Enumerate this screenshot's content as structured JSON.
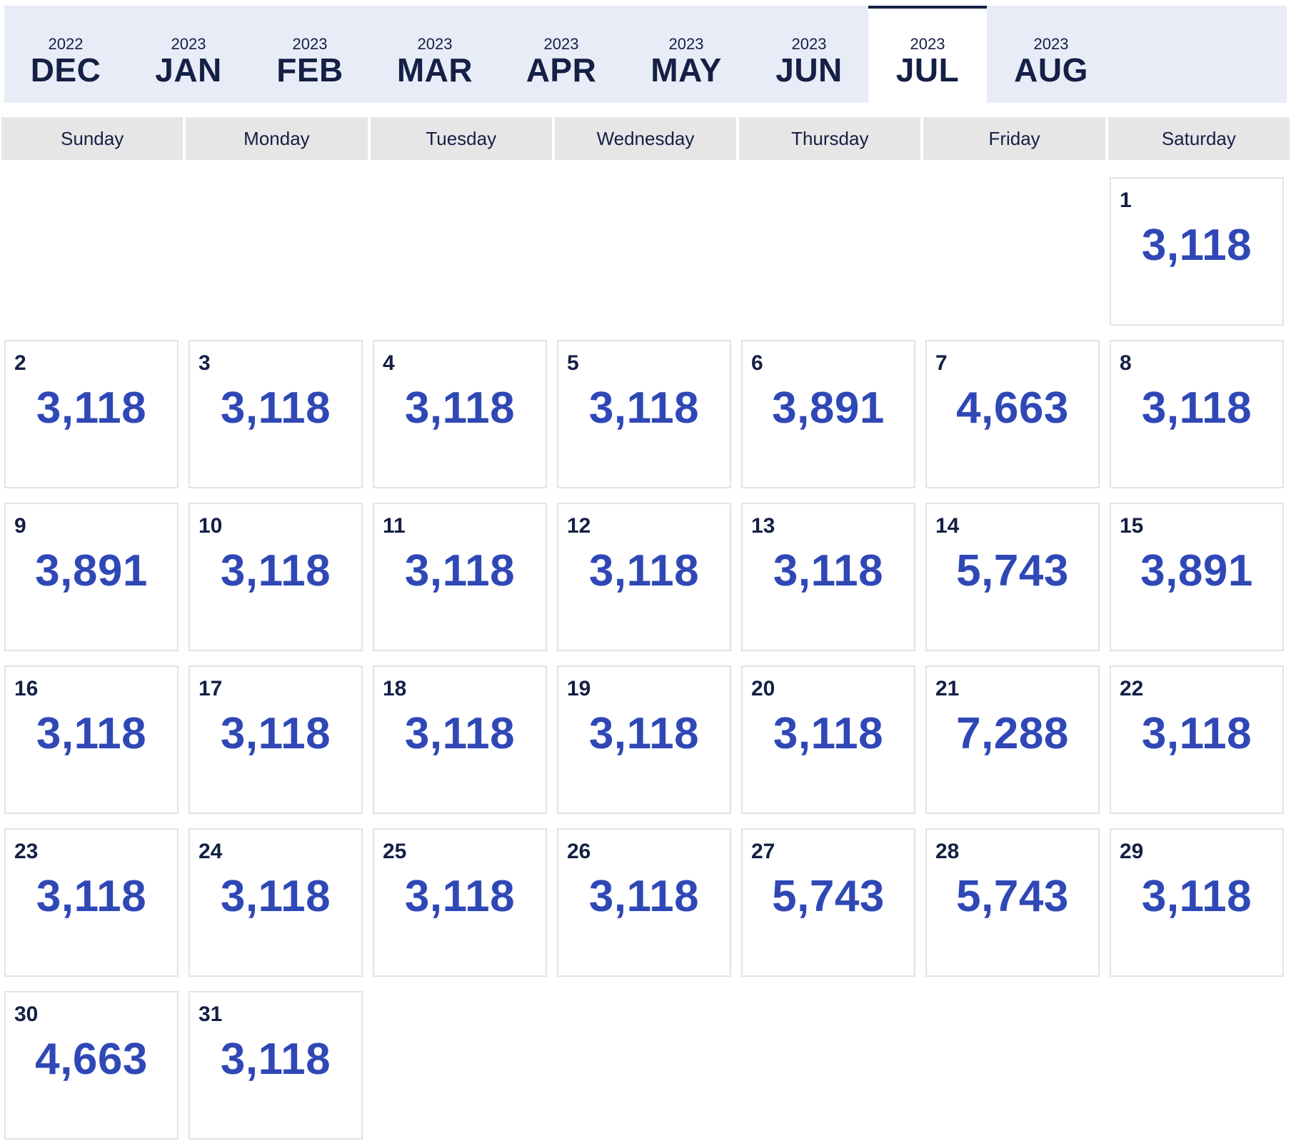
{
  "months": [
    {
      "year": "2022",
      "name": "DEC",
      "active": false
    },
    {
      "year": "2023",
      "name": "JAN",
      "active": false
    },
    {
      "year": "2023",
      "name": "FEB",
      "active": false
    },
    {
      "year": "2023",
      "name": "MAR",
      "active": false
    },
    {
      "year": "2023",
      "name": "APR",
      "active": false
    },
    {
      "year": "2023",
      "name": "MAY",
      "active": false
    },
    {
      "year": "2023",
      "name": "JUN",
      "active": false
    },
    {
      "year": "2023",
      "name": "JUL",
      "active": true
    },
    {
      "year": "2023",
      "name": "AUG",
      "active": false
    }
  ],
  "weekdays": [
    "Sunday",
    "Monday",
    "Tuesday",
    "Wednesday",
    "Thursday",
    "Friday",
    "Saturday"
  ],
  "calendar": {
    "first_weekday_index": 6,
    "days": [
      {
        "day": "1",
        "value": "3,118"
      },
      {
        "day": "2",
        "value": "3,118"
      },
      {
        "day": "3",
        "value": "3,118"
      },
      {
        "day": "4",
        "value": "3,118"
      },
      {
        "day": "5",
        "value": "3,118"
      },
      {
        "day": "6",
        "value": "3,891"
      },
      {
        "day": "7",
        "value": "4,663"
      },
      {
        "day": "8",
        "value": "3,118"
      },
      {
        "day": "9",
        "value": "3,891"
      },
      {
        "day": "10",
        "value": "3,118"
      },
      {
        "day": "11",
        "value": "3,118"
      },
      {
        "day": "12",
        "value": "3,118"
      },
      {
        "day": "13",
        "value": "3,118"
      },
      {
        "day": "14",
        "value": "5,743"
      },
      {
        "day": "15",
        "value": "3,891"
      },
      {
        "day": "16",
        "value": "3,118"
      },
      {
        "day": "17",
        "value": "3,118"
      },
      {
        "day": "18",
        "value": "3,118"
      },
      {
        "day": "19",
        "value": "3,118"
      },
      {
        "day": "20",
        "value": "3,118"
      },
      {
        "day": "21",
        "value": "7,288"
      },
      {
        "day": "22",
        "value": "3,118"
      },
      {
        "day": "23",
        "value": "3,118"
      },
      {
        "day": "24",
        "value": "3,118"
      },
      {
        "day": "25",
        "value": "3,118"
      },
      {
        "day": "26",
        "value": "3,118"
      },
      {
        "day": "27",
        "value": "5,743"
      },
      {
        "day": "28",
        "value": "5,743"
      },
      {
        "day": "29",
        "value": "3,118"
      },
      {
        "day": "30",
        "value": "4,663"
      },
      {
        "day": "31",
        "value": "3,118"
      }
    ]
  }
}
